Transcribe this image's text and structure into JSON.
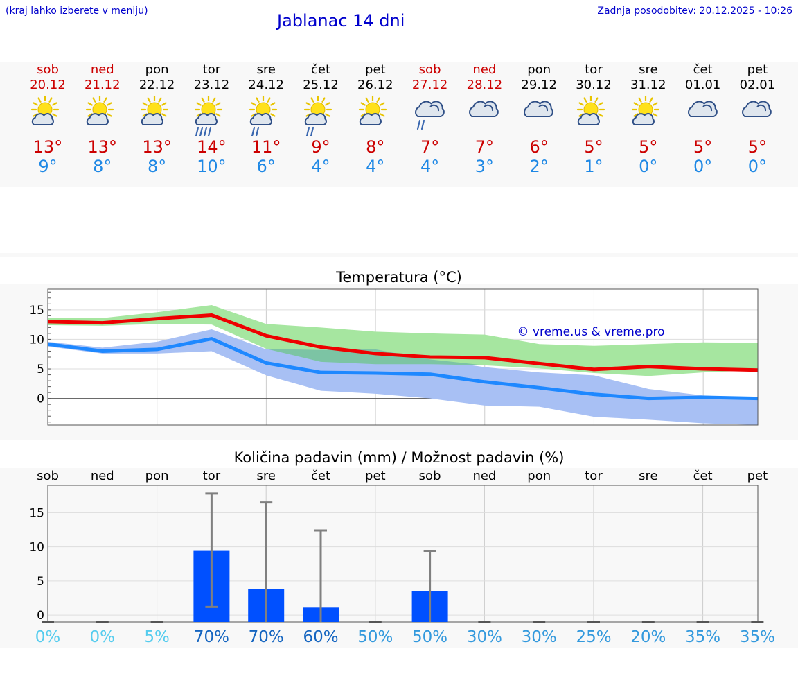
{
  "header": {
    "left_note": "(kraj lahko izberete v meniju)",
    "title": "Jablanac 14 dni",
    "updated": "Zadnja posodobitev: 20.12.2025 - 10:26"
  },
  "days": [
    {
      "name": "sob",
      "date": "20.12",
      "weekend": true,
      "icon": "sun-cloud",
      "tmax": "13°",
      "tmin": "9°",
      "precip_pct": "0%"
    },
    {
      "name": "ned",
      "date": "21.12",
      "weekend": true,
      "icon": "sun-cloud",
      "tmax": "13°",
      "tmin": "8°",
      "precip_pct": "0%"
    },
    {
      "name": "pon",
      "date": "22.12",
      "weekend": false,
      "icon": "sun-cloud",
      "tmax": "13°",
      "tmin": "8°",
      "precip_pct": "5%"
    },
    {
      "name": "tor",
      "date": "23.12",
      "weekend": false,
      "icon": "sun-cloud-heavy-rain",
      "tmax": "14°",
      "tmin": "10°",
      "precip_pct": "70%"
    },
    {
      "name": "sre",
      "date": "24.12",
      "weekend": false,
      "icon": "sun-cloud-rain",
      "tmax": "11°",
      "tmin": "6°",
      "precip_pct": "70%"
    },
    {
      "name": "čet",
      "date": "25.12",
      "weekend": false,
      "icon": "sun-cloud-rain",
      "tmax": "9°",
      "tmin": "4°",
      "precip_pct": "60%"
    },
    {
      "name": "pet",
      "date": "26.12",
      "weekend": false,
      "icon": "sun-cloud",
      "tmax": "8°",
      "tmin": "4°",
      "precip_pct": "50%"
    },
    {
      "name": "sob",
      "date": "27.12",
      "weekend": true,
      "icon": "cloud-rain",
      "tmax": "7°",
      "tmin": "4°",
      "precip_pct": "50%"
    },
    {
      "name": "ned",
      "date": "28.12",
      "weekend": true,
      "icon": "cloud",
      "tmax": "7°",
      "tmin": "3°",
      "precip_pct": "30%"
    },
    {
      "name": "pon",
      "date": "29.12",
      "weekend": false,
      "icon": "cloud",
      "tmax": "6°",
      "tmin": "2°",
      "precip_pct": "30%"
    },
    {
      "name": "tor",
      "date": "30.12",
      "weekend": false,
      "icon": "sun-cloud",
      "tmax": "5°",
      "tmin": "1°",
      "precip_pct": "25%"
    },
    {
      "name": "sre",
      "date": "31.12",
      "weekend": false,
      "icon": "sun-cloud",
      "tmax": "5°",
      "tmin": "0°",
      "precip_pct": "20%"
    },
    {
      "name": "čet",
      "date": "01.01",
      "weekend": false,
      "icon": "cloud",
      "tmax": "5°",
      "tmin": "0°",
      "precip_pct": "35%"
    },
    {
      "name": "pet",
      "date": "02.01",
      "weekend": false,
      "icon": "cloud",
      "tmax": "5°",
      "tmin": "0°",
      "precip_pct": "35%"
    }
  ],
  "colors": {
    "weekend": "#cc0000",
    "weekday": "#000000",
    "max_line": "#ee0000",
    "min_line": "#1e88ff",
    "max_band": "#a6e6a0",
    "min_band": "#a8c0f4",
    "overlap_band": "#7cc4a4",
    "bar": "#0050ff",
    "whisker": "#808080"
  },
  "chart_data": [
    {
      "type": "line",
      "title": "Temperatura (°C)",
      "watermark": "© vreme.us & vreme.pro",
      "x": [
        0,
        1,
        2,
        3,
        4,
        5,
        6,
        7,
        8,
        9,
        10,
        11,
        12,
        13
      ],
      "ylim": [
        -4.5,
        18.5
      ],
      "yticks": [
        0,
        5,
        10,
        15
      ],
      "series": [
        {
          "name": "max",
          "values": [
            13,
            12.8,
            13.5,
            14.1,
            10.6,
            8.7,
            7.6,
            7,
            6.9,
            5.9,
            4.9,
            5.4,
            5,
            4.8
          ]
        },
        {
          "name": "max_band_low",
          "values": [
            12.4,
            12.3,
            12.6,
            12.5,
            8.4,
            6.2,
            5.8,
            5.8,
            5.6,
            5.1,
            4.3,
            3.8,
            4.4,
            4.8
          ]
        },
        {
          "name": "max_band_high",
          "values": [
            13.6,
            13.6,
            14.6,
            15.8,
            12.6,
            12,
            11.3,
            11,
            10.8,
            9.2,
            8.9,
            9.2,
            9.5,
            9.4
          ]
        },
        {
          "name": "min",
          "values": [
            9.2,
            8,
            8.3,
            10.1,
            6,
            4.4,
            4.3,
            4.1,
            2.8,
            1.8,
            0.7,
            0,
            0.2,
            0
          ]
        },
        {
          "name": "min_band_low",
          "values": [
            8.8,
            7.6,
            7.6,
            8,
            3.9,
            1.3,
            0.8,
            0,
            -1.2,
            -1.4,
            -3.1,
            -3.6,
            -4.2,
            -4.5
          ]
        },
        {
          "name": "min_band_high",
          "values": [
            9.6,
            8.6,
            9.6,
            11.7,
            8.3,
            8.2,
            8.3,
            6.6,
            5.3,
            4.4,
            3.9,
            1.6,
            0.5,
            0
          ]
        }
      ]
    },
    {
      "type": "bar",
      "title": "Količina padavin (mm) / Možnost padavin (%)",
      "categories": [
        "sob",
        "ned",
        "pon",
        "tor",
        "sre",
        "čet",
        "pet",
        "sob",
        "ned",
        "pon",
        "tor",
        "sre",
        "čet",
        "pet"
      ],
      "values": [
        0,
        0,
        0,
        9.5,
        3.8,
        1.1,
        0,
        3.5,
        0,
        0,
        0,
        0,
        0,
        0
      ],
      "whisker_low": [
        0,
        0,
        0,
        1.2,
        0,
        0,
        0,
        0,
        0,
        0,
        0,
        0,
        0,
        0
      ],
      "whisker_high": [
        0,
        0,
        0,
        17.8,
        16.5,
        12.4,
        0,
        9.4,
        0,
        0,
        0,
        0,
        0,
        0
      ],
      "precip_chance": [
        "0%",
        "0%",
        "5%",
        "70%",
        "70%",
        "60%",
        "50%",
        "50%",
        "30%",
        "30%",
        "25%",
        "20%",
        "35%",
        "35%"
      ],
      "ylim": [
        -1,
        19
      ],
      "yticks": [
        0,
        5,
        10,
        15
      ]
    }
  ]
}
